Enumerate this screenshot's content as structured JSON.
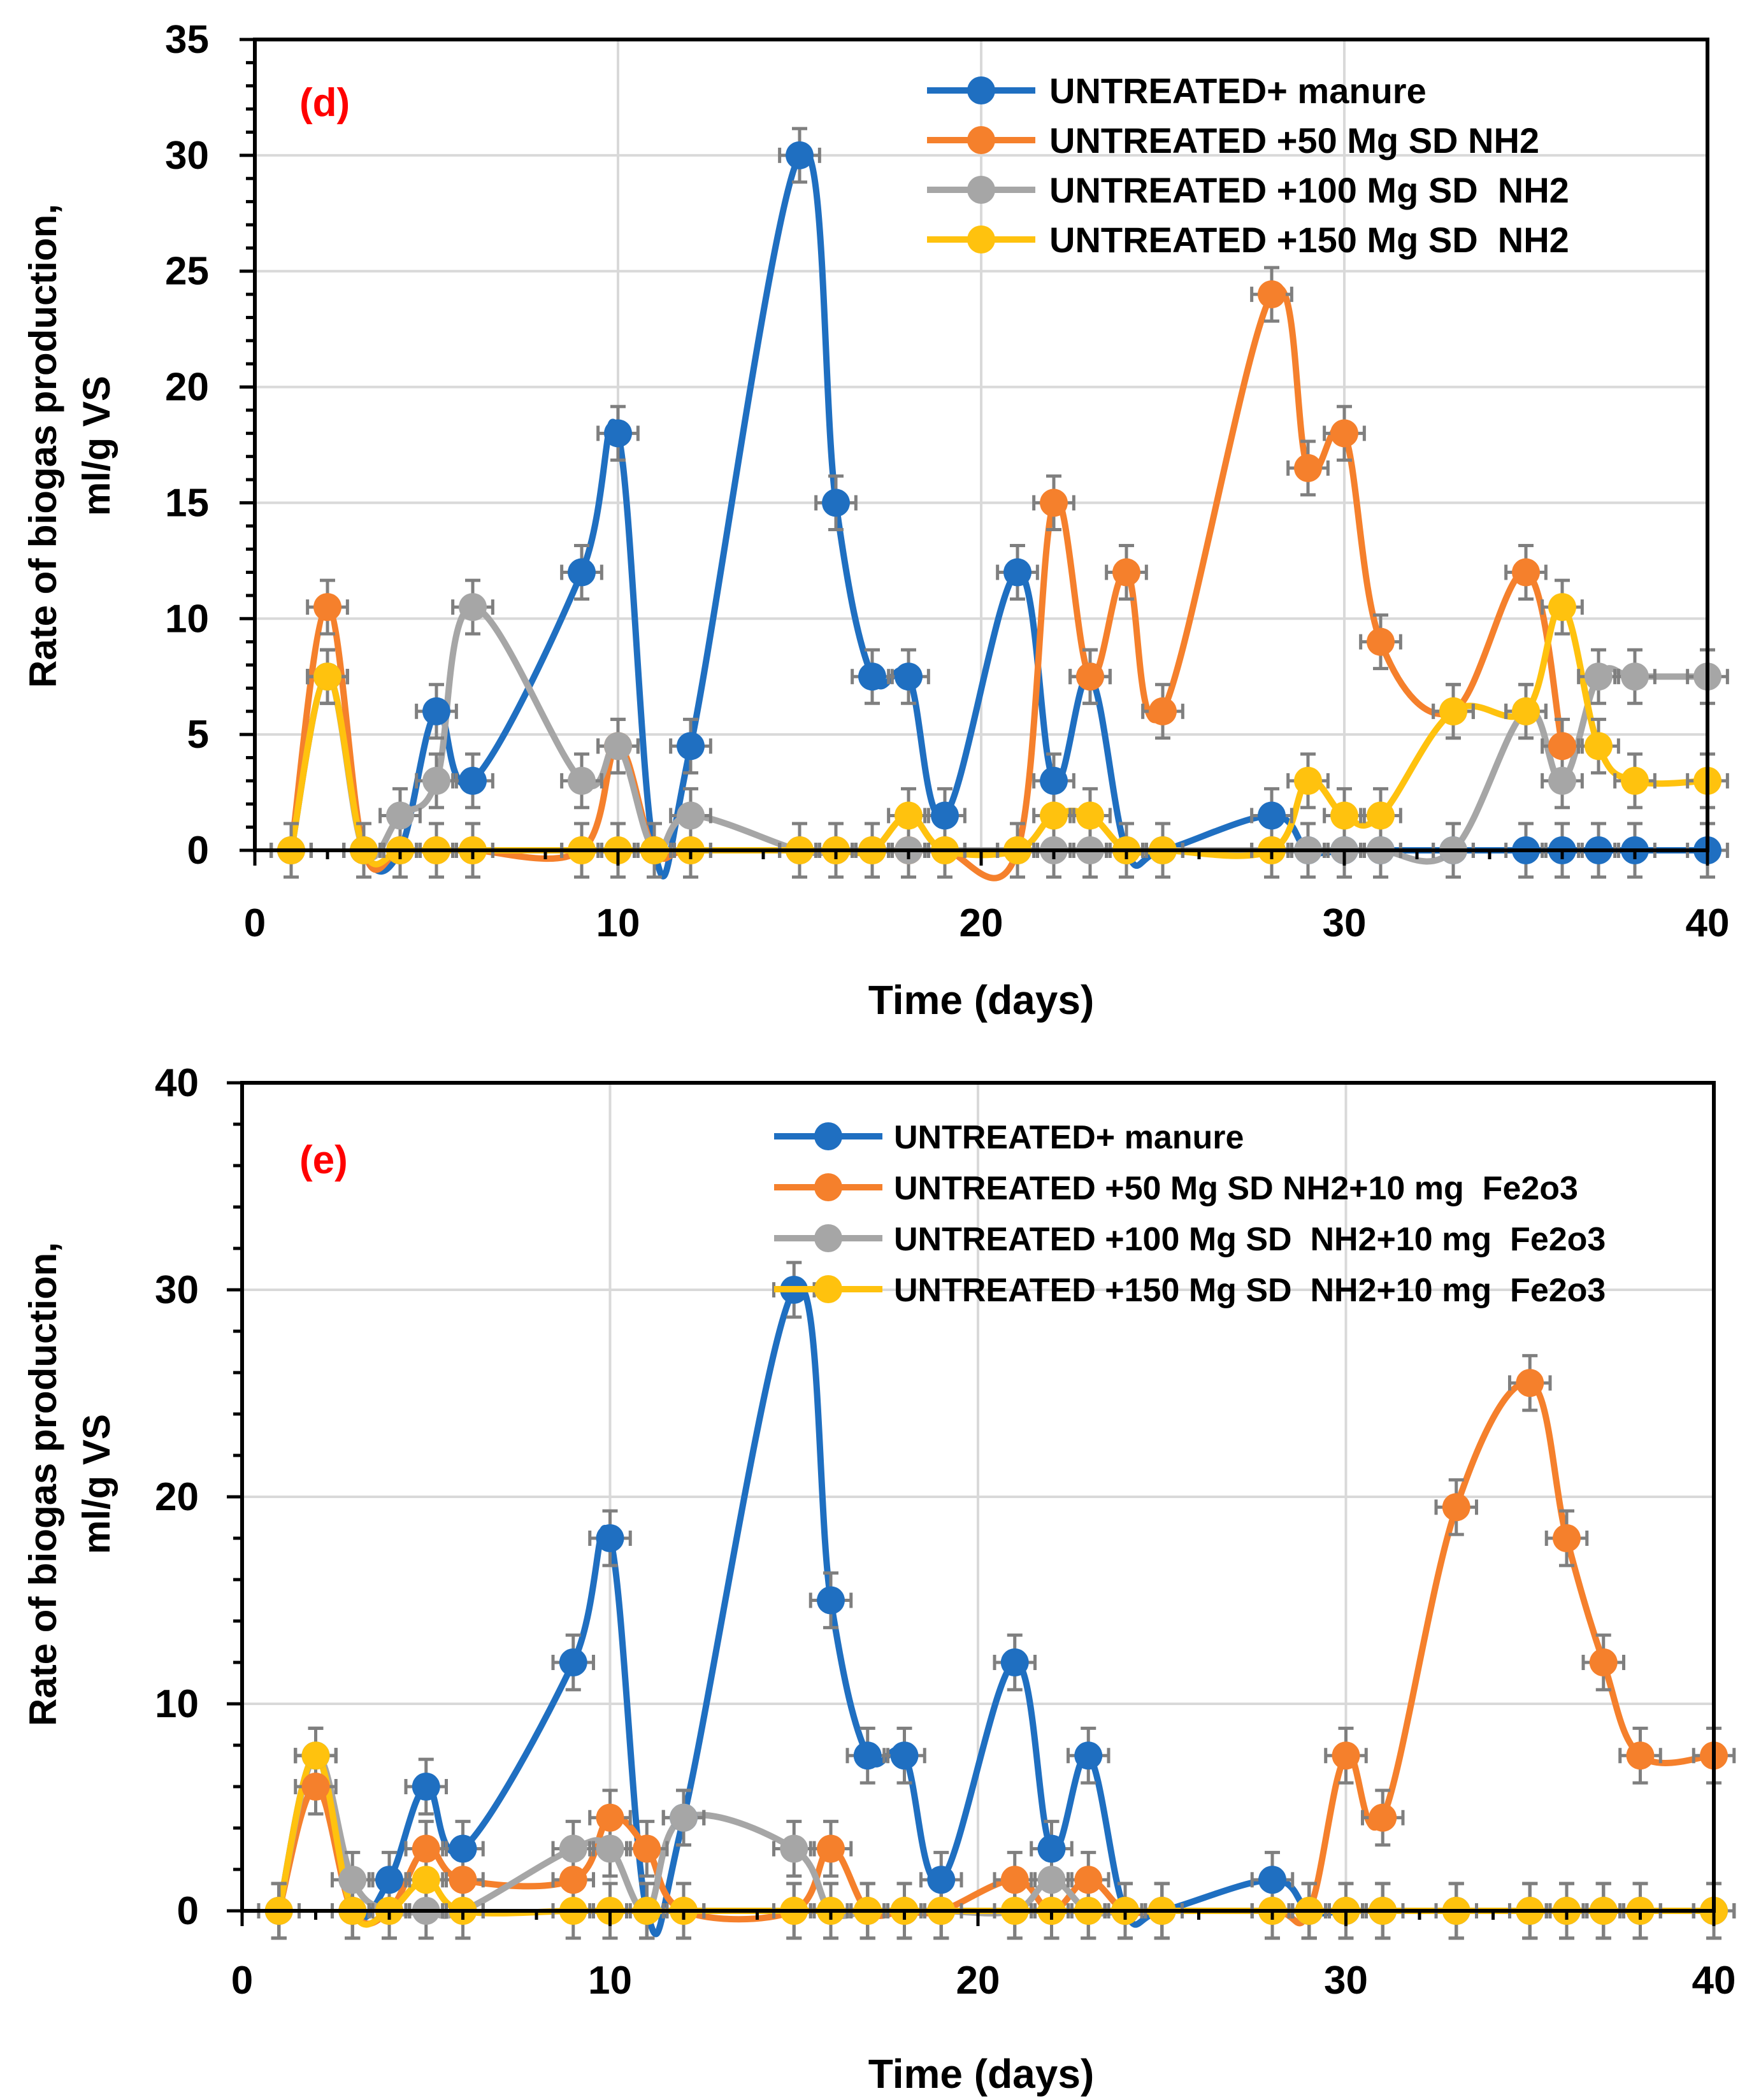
{
  "colors": {
    "blue": "#1f6fc1",
    "orange": "#f5802c",
    "gray": "#a6a6a6",
    "yellow": "#ffc20e",
    "panel_label": "#ff0000",
    "grid": "#d9d9d9",
    "axis": "#000000",
    "errorbar": "#7f7f7f"
  },
  "chart_data": [
    {
      "type": "line",
      "panel_label": "(d)",
      "title": "",
      "xlabel": "Time (days)",
      "ylabel_line1": "Rate of biogas production,",
      "ylabel_line2": "ml/g VS",
      "xlim": [
        0,
        40
      ],
      "ylim": [
        0,
        35
      ],
      "xticks": [
        0,
        10,
        20,
        30,
        40
      ],
      "yticks": [
        0,
        5,
        10,
        15,
        20,
        25,
        30,
        35
      ],
      "grid": true,
      "legend_position": "top-right",
      "series": [
        {
          "name": "UNTREATED+ manure",
          "color_key": "blue",
          "x": [
            1,
            2,
            3,
            4,
            5,
            6,
            9,
            10,
            11,
            12,
            15,
            16,
            17,
            18,
            19,
            21,
            22,
            23,
            24,
            25,
            28,
            29,
            30,
            31,
            33,
            35,
            36,
            37,
            38,
            40
          ],
          "y": [
            0,
            7.5,
            0,
            0,
            6,
            3,
            12,
            18,
            0,
            4.5,
            30,
            15,
            7.5,
            7.5,
            1.5,
            12,
            3,
            7.5,
            0,
            0,
            1.5,
            0,
            0,
            0,
            0,
            0,
            0,
            0,
            0,
            0
          ]
        },
        {
          "name": "UNTREATED +50 Mg SD NH2",
          "color_key": "orange",
          "x": [
            1,
            2,
            3,
            4,
            5,
            6,
            9,
            10,
            11,
            12,
            15,
            16,
            17,
            18,
            19,
            21,
            22,
            23,
            24,
            25,
            28,
            29,
            30,
            31,
            33,
            35,
            36
          ],
          "y": [
            0,
            10.5,
            0,
            0,
            0,
            0,
            0,
            4.5,
            0,
            0,
            0,
            0,
            0,
            0,
            0,
            0,
            15,
            7.5,
            12,
            6,
            24,
            16.5,
            18,
            9,
            6,
            12,
            4.5
          ]
        },
        {
          "name": "UNTREATED +100 Mg SD  NH2",
          "color_key": "gray",
          "x": [
            1,
            2,
            3,
            4,
            5,
            6,
            9,
            10,
            11,
            12,
            15,
            16,
            17,
            18,
            19,
            21,
            22,
            23,
            24,
            25,
            28,
            29,
            30,
            31,
            33,
            35,
            36,
            37,
            38,
            40
          ],
          "y": [
            0,
            7.5,
            0,
            1.5,
            3,
            10.5,
            3,
            4.5,
            0,
            1.5,
            0,
            0,
            0,
            0,
            0,
            0,
            0,
            0,
            0,
            0,
            0,
            0,
            0,
            0,
            0,
            6,
            3,
            7.5,
            7.5,
            7.5
          ]
        },
        {
          "name": "UNTREATED +150 Mg SD  NH2",
          "color_key": "yellow",
          "x": [
            1,
            2,
            3,
            4,
            5,
            6,
            9,
            10,
            11,
            12,
            15,
            16,
            17,
            18,
            19,
            21,
            22,
            23,
            24,
            25,
            28,
            29,
            30,
            31,
            33,
            35,
            36,
            37,
            38,
            40
          ],
          "y": [
            0,
            7.5,
            0,
            0,
            0,
            0,
            0,
            0,
            0,
            0,
            0,
            0,
            0,
            1.5,
            0,
            0,
            1.5,
            1.5,
            0,
            0,
            0,
            3,
            1.5,
            1.5,
            6,
            6,
            10.5,
            4.5,
            3,
            3
          ]
        }
      ]
    },
    {
      "type": "line",
      "panel_label": "(e)",
      "title": "",
      "xlabel": "Time (days)",
      "ylabel_line1": "Rate of biogas production,",
      "ylabel_line2": "ml/g VS",
      "xlim": [
        0,
        40
      ],
      "ylim": [
        0,
        40
      ],
      "xticks": [
        0,
        10,
        20,
        30,
        40
      ],
      "yticks": [
        0,
        10,
        20,
        30,
        40
      ],
      "grid": true,
      "legend_position": "top-right",
      "series": [
        {
          "name": "UNTREATED+ manure",
          "color_key": "blue",
          "x": [
            1,
            2,
            3,
            4,
            5,
            6,
            9,
            10,
            11,
            12,
            15,
            16,
            17,
            18,
            19,
            21,
            22,
            23,
            24,
            25,
            28,
            29,
            30,
            31,
            33,
            35,
            36,
            37,
            38,
            40
          ],
          "y": [
            0,
            7.5,
            0,
            1.5,
            6,
            3,
            12,
            18,
            0,
            4.5,
            30,
            15,
            7.5,
            7.5,
            1.5,
            12,
            3,
            7.5,
            0,
            0,
            1.5,
            0,
            0,
            0,
            0,
            0,
            0,
            0,
            0,
            0
          ]
        },
        {
          "name": "UNTREATED +50 Mg SD NH2+10 mg  Fe2o3",
          "color_key": "orange",
          "x": [
            1,
            2,
            3,
            4,
            5,
            6,
            9,
            10,
            11,
            12,
            15,
            16,
            17,
            18,
            19,
            21,
            22,
            23,
            24,
            25,
            28,
            29,
            30,
            31,
            33,
            35,
            36,
            37,
            38,
            40
          ],
          "y": [
            0,
            6,
            0,
            0,
            3,
            1.5,
            1.5,
            4.5,
            3,
            0,
            0,
            3,
            0,
            0,
            0,
            1.5,
            0,
            1.5,
            0,
            0,
            0,
            0,
            7.5,
            4.5,
            19.5,
            25.5,
            18,
            12,
            7.5,
            7.5
          ]
        },
        {
          "name": "UNTREATED +100 Mg SD  NH2+10 mg  Fe2o3",
          "color_key": "gray",
          "x": [
            1,
            2,
            3,
            4,
            5,
            6,
            9,
            10,
            11,
            12,
            15,
            16,
            17,
            18,
            19,
            21,
            22,
            23,
            24,
            25,
            28,
            29,
            30,
            31,
            33,
            35,
            36,
            37,
            38,
            40
          ],
          "y": [
            0,
            7.5,
            1.5,
            0,
            0,
            0,
            3,
            3,
            0,
            4.5,
            3,
            0,
            0,
            0,
            0,
            0,
            1.5,
            0,
            0,
            0,
            0,
            0,
            0,
            0,
            0,
            0,
            0,
            0,
            0,
            0
          ]
        },
        {
          "name": "UNTREATED +150 Mg SD  NH2+10 mg  Fe2o3",
          "color_key": "yellow",
          "x": [
            1,
            2,
            3,
            4,
            5,
            6,
            9,
            10,
            11,
            12,
            15,
            16,
            17,
            18,
            19,
            21,
            22,
            23,
            24,
            25,
            28,
            29,
            30,
            31,
            33,
            35,
            36,
            37,
            38,
            40
          ],
          "y": [
            0,
            7.5,
            0,
            0,
            1.5,
            0,
            0,
            0,
            0,
            0,
            0,
            0,
            0,
            0,
            0,
            0,
            0,
            0,
            0,
            0,
            0,
            0,
            0,
            0,
            0,
            0,
            0,
            0,
            0,
            0
          ]
        }
      ]
    }
  ]
}
